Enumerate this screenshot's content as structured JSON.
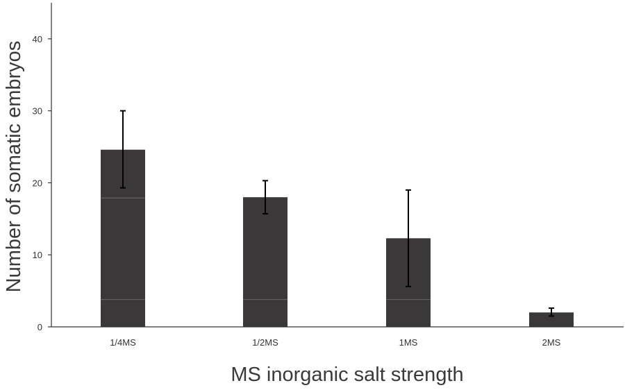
{
  "chart_data": {
    "type": "bar",
    "title": "",
    "xlabel": "MS inorganic salt strength",
    "ylabel": "Number of  somatic embryos",
    "categories": [
      "1/4MS",
      "1/2MS",
      "1MS",
      "2MS"
    ],
    "values": [
      24.6,
      18.0,
      12.3,
      2.0
    ],
    "error_low": [
      19.3,
      15.7,
      5.6,
      1.5
    ],
    "error_high": [
      30.0,
      20.3,
      19.0,
      2.6
    ],
    "ylim": [
      0,
      45
    ],
    "yticks": [
      0,
      10,
      20,
      30,
      40
    ],
    "grid": false,
    "legend": "none",
    "bar_color": "#3a3838",
    "error_color": "#000000"
  }
}
